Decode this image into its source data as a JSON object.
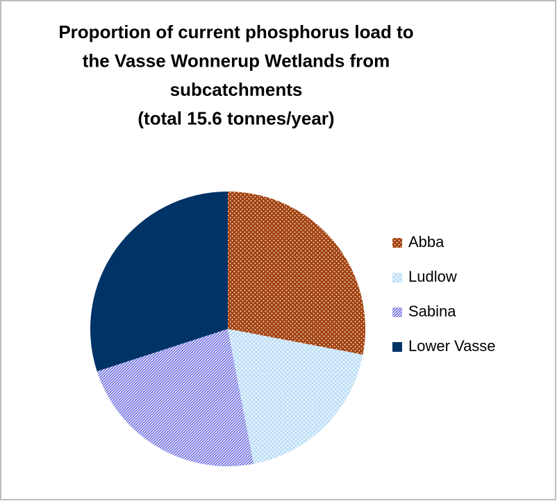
{
  "chart_data": {
    "type": "pie",
    "title": [
      "Proportion of current phosphorus load to",
      "the Vasse Wonnerup Wetlands from",
      "subcatchments",
      "(total 15.6 tonnes/year)"
    ],
    "categories": [
      "Abba",
      "Ludlow",
      "Sabina",
      "Lower Vasse"
    ],
    "values": [
      28,
      19,
      23,
      30
    ],
    "colors": [
      "#a3420f",
      "#bfe0f7",
      "#6a6ae0",
      "#003366"
    ],
    "patterns": [
      "dots",
      "checker",
      "diagonal",
      "solid"
    ],
    "legend": "right"
  }
}
